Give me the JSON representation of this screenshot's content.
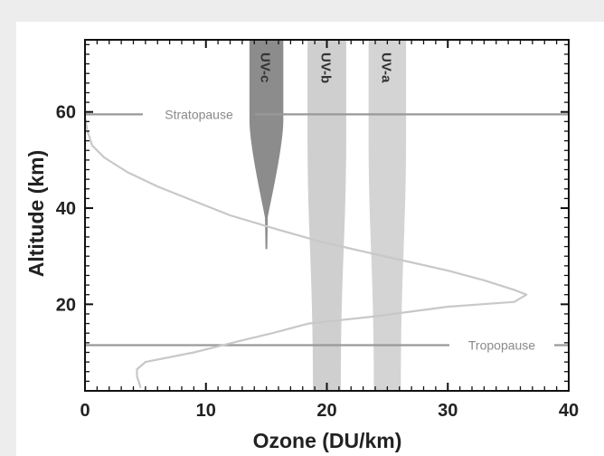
{
  "chart_data": {
    "type": "line",
    "title": "",
    "xlabel": "Ozone (DU/km)",
    "ylabel": "Altitude (km)",
    "xlim": [
      0,
      40
    ],
    "ylim": [
      2,
      75
    ],
    "x_ticks": [
      0,
      10,
      20,
      30,
      40
    ],
    "y_ticks": [
      20,
      40,
      60
    ],
    "grid": false,
    "series": [
      {
        "name": "",
        "color": "#c8c8c8",
        "points": [
          [
            0,
            59
          ],
          [
            0.2,
            56
          ],
          [
            0.6,
            53
          ],
          [
            1.6,
            50.5
          ],
          [
            3.5,
            47.5
          ],
          [
            6,
            44.5
          ],
          [
            9,
            41.5
          ],
          [
            12,
            38.5
          ],
          [
            16,
            35.5
          ],
          [
            19.5,
            33
          ],
          [
            23,
            31
          ],
          [
            26.5,
            29
          ],
          [
            30,
            27
          ],
          [
            33,
            25
          ],
          [
            35.5,
            23
          ],
          [
            36.5,
            22
          ],
          [
            35.5,
            20.5
          ],
          [
            30,
            19.5
          ],
          [
            24,
            17.5
          ],
          [
            18.5,
            16
          ],
          [
            15.5,
            14
          ],
          [
            13,
            12.5
          ],
          [
            9,
            10
          ],
          [
            5,
            8
          ],
          [
            4.3,
            6.5
          ],
          [
            4.3,
            5
          ],
          [
            4.5,
            3.5
          ],
          [
            4.6,
            2.6
          ]
        ]
      }
    ],
    "uv_bands": [
      {
        "label": "UV-c",
        "center": 15,
        "max_half_width": 1.4,
        "top": 75,
        "bottom": 31.5,
        "color": "#8c8c8c",
        "tip_alt": 38
      },
      {
        "label": "UV-b",
        "center": 20,
        "max_half_width": 1.6,
        "top": 75,
        "bottom": 2,
        "color": "#cfcfcf",
        "tip_alt": null
      },
      {
        "label": "UV-a",
        "center": 25,
        "max_half_width": 1.55,
        "top": 75,
        "bottom": 2,
        "color": "#d4d4d4",
        "tip_alt": null
      }
    ],
    "reference_lines": [
      {
        "label": "Stratopause",
        "altitude": 59.5,
        "color": "#999999"
      },
      {
        "label": "Tropopause",
        "altitude": 11.5,
        "color": "#999999"
      }
    ]
  }
}
